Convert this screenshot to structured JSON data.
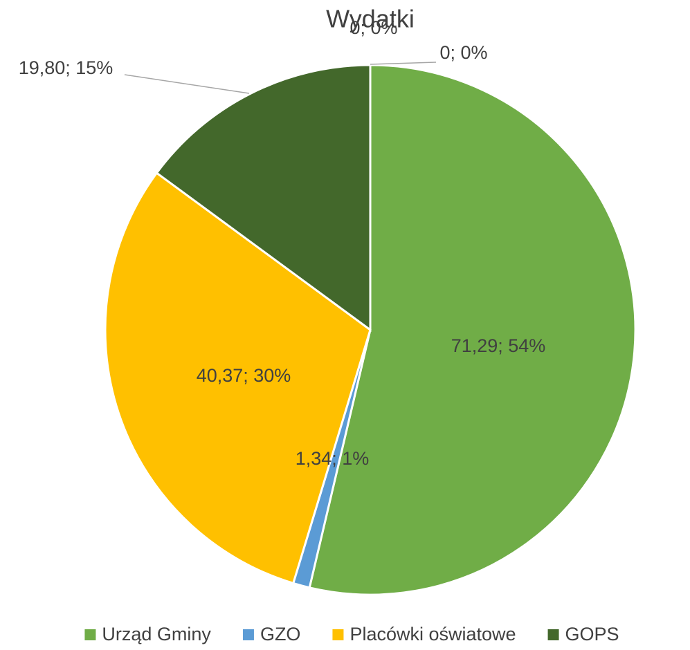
{
  "chart_data": {
    "type": "pie",
    "title": "Wydatki",
    "categories": [
      "Urząd Gminy",
      "GZO",
      "Placówki oświatowe",
      "GOPS",
      null,
      null
    ],
    "values": [
      71.29,
      1.34,
      40.37,
      19.8,
      0,
      0
    ],
    "value_labels": [
      "71,29; 54%",
      "1,34; 1%",
      "40,37; 30%",
      "19,80; 15%",
      "0; 0%",
      "0; 0%"
    ],
    "colors": [
      "#70ad47",
      "#5b9bd5",
      "#ffc000",
      "#43682b",
      "#a5a5a5",
      "#264478"
    ],
    "legend": "bottom"
  }
}
